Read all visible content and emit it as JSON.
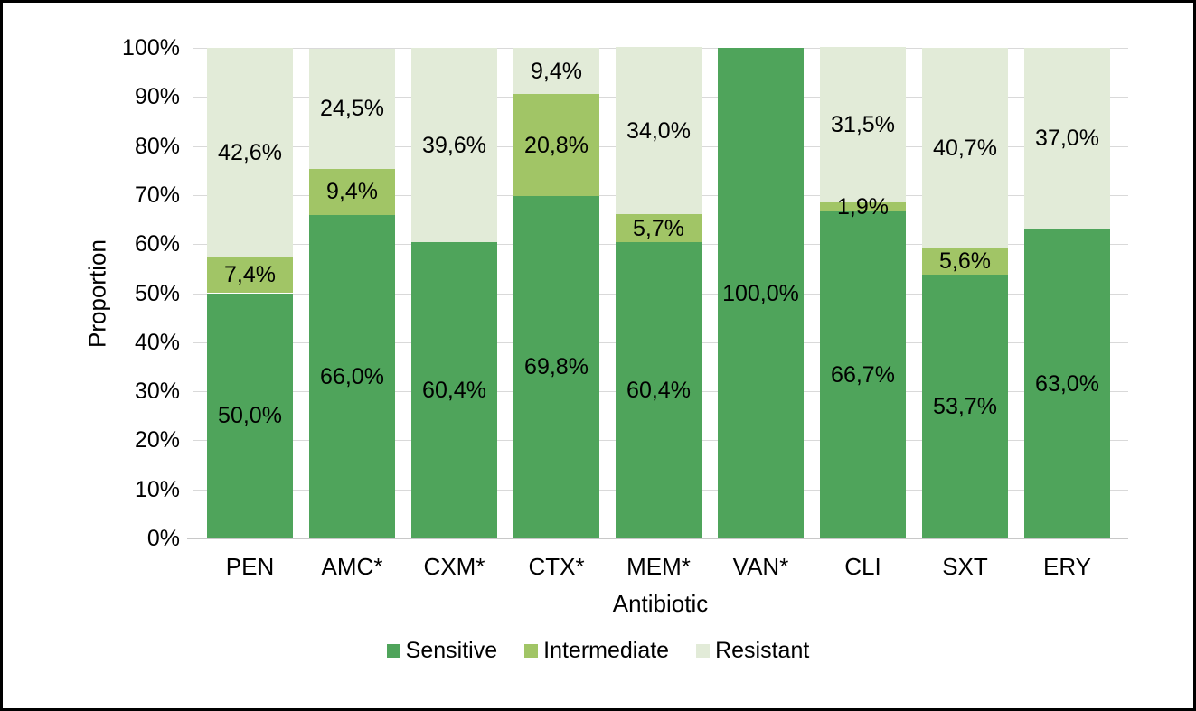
{
  "chart_data": {
    "type": "bar",
    "stacked": true,
    "orientation": "vertical",
    "title": "",
    "xlabel": "Antibiotic",
    "ylabel": "Proportion",
    "ylim": [
      0,
      100
    ],
    "y_tick_labels": [
      "0%",
      "10%",
      "20%",
      "30%",
      "40%",
      "50%",
      "60%",
      "70%",
      "80%",
      "90%",
      "100%"
    ],
    "grid": true,
    "legend_position": "bottom",
    "decimal_separator": ",",
    "categories": [
      "PEN",
      "AMC*",
      "CXM*",
      "CTX*",
      "MEM*",
      "VAN*",
      "CLI",
      "SXT",
      "ERY"
    ],
    "series": [
      {
        "name": "Sensitive",
        "color": "#4FA45B",
        "values": [
          50.0,
          66.0,
          60.4,
          69.8,
          60.4,
          100.0,
          66.7,
          53.7,
          63.0
        ],
        "labels": [
          "50,0%",
          "66,0%",
          "60,4%",
          "69,8%",
          "60,4%",
          "100,0%",
          "66,7%",
          "53,7%",
          "63,0%"
        ]
      },
      {
        "name": "Intermediate",
        "color": "#A1C566",
        "values": [
          7.4,
          9.4,
          0,
          20.8,
          5.7,
          0,
          1.9,
          5.6,
          0
        ],
        "labels": [
          "7,4%",
          "9,4%",
          "",
          "20,8%",
          "5,7%",
          "",
          "1,9%",
          "5,6%",
          ""
        ]
      },
      {
        "name": "Resistant",
        "color": "#E2EBD8",
        "values": [
          42.6,
          24.5,
          39.6,
          9.4,
          34.0,
          0,
          31.5,
          40.7,
          37.0
        ],
        "labels": [
          "42,6%",
          "24,5%",
          "39,6%",
          "9,4%",
          "34,0%",
          "",
          "31,5%",
          "40,7%",
          "37,0%"
        ]
      }
    ],
    "colors": {
      "gridline": "#d9d9d9",
      "axis_line": "#c8c8c8",
      "text": "#000000",
      "frame_border": "#000000",
      "background": "#ffffff"
    }
  }
}
